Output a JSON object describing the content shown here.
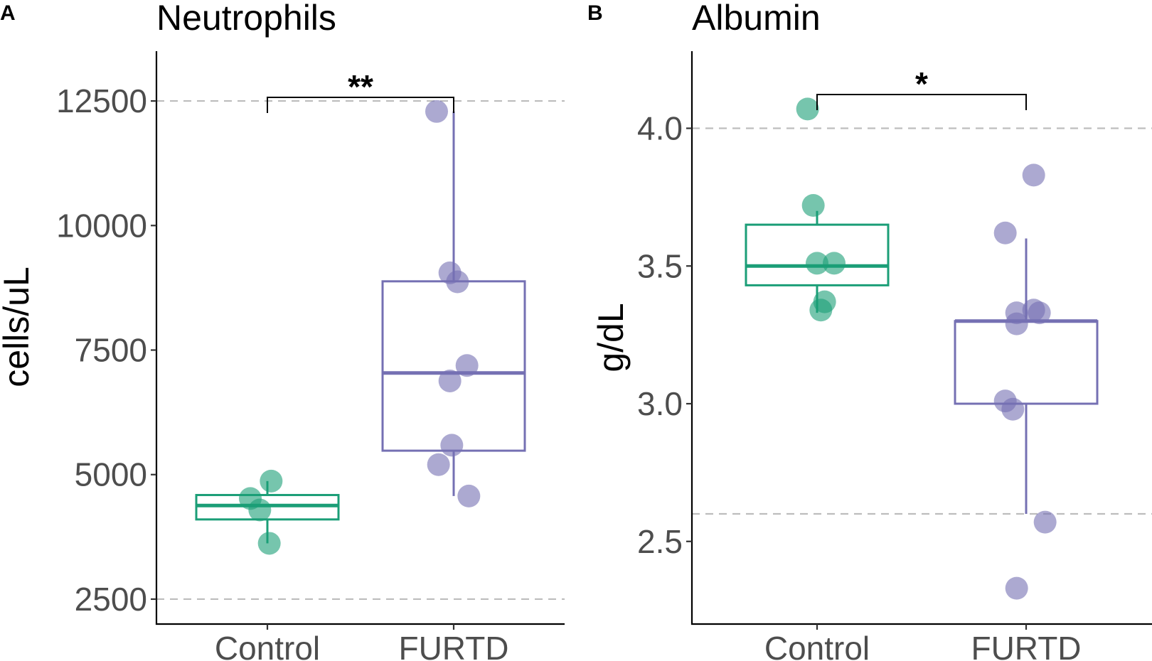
{
  "chart_data": [
    {
      "panel_label": "A",
      "type": "box",
      "title": "Neutrophils",
      "xlabel": "",
      "ylabel": "cells/uL",
      "ylim": [
        2000,
        13500
      ],
      "yticks": [
        2500,
        5000,
        7500,
        10000,
        12500
      ],
      "reference_lines": [
        2500,
        12500
      ],
      "categories": [
        "Control",
        "FURTD"
      ],
      "colors": {
        "Control": "#1b9e77",
        "FURTD": "#7570b3"
      },
      "boxes": [
        {
          "category": "Control",
          "q1": 4100,
          "median": 4380,
          "q3": 4590,
          "whisker_low": 3620,
          "whisker_high": 4870
        },
        {
          "category": "FURTD",
          "q1": 5480,
          "median": 7040,
          "q3": 8880,
          "whisker_low": 4570,
          "whisker_high": 12290
        }
      ],
      "points": [
        {
          "category": "Control",
          "jitter": 0.02,
          "y": 4870
        },
        {
          "category": "Control",
          "jitter": -0.09,
          "y": 4520
        },
        {
          "category": "Control",
          "jitter": -0.04,
          "y": 4290
        },
        {
          "category": "Control",
          "jitter": 0.01,
          "y": 3620
        },
        {
          "category": "FURTD",
          "jitter": -0.09,
          "y": 12290
        },
        {
          "category": "FURTD",
          "jitter": -0.02,
          "y": 9050
        },
        {
          "category": "FURTD",
          "jitter": 0.02,
          "y": 8870
        },
        {
          "category": "FURTD",
          "jitter": 0.07,
          "y": 7190
        },
        {
          "category": "FURTD",
          "jitter": -0.02,
          "y": 6880
        },
        {
          "category": "FURTD",
          "jitter": -0.01,
          "y": 5590
        },
        {
          "category": "FURTD",
          "jitter": -0.08,
          "y": 5200
        },
        {
          "category": "FURTD",
          "jitter": 0.08,
          "y": 4570
        }
      ],
      "significance": {
        "label": "**",
        "from": "Control",
        "to": "FURTD",
        "y": 13000
      }
    },
    {
      "panel_label": "B",
      "type": "box",
      "title": "Albumin",
      "xlabel": "",
      "ylabel": "g/dL",
      "ylim": [
        2.2,
        4.28
      ],
      "yticks": [
        "2.5",
        "3.0",
        "3.5",
        "4.0"
      ],
      "reference_lines": [
        2.6,
        4.0
      ],
      "categories": [
        "Control",
        "FURTD"
      ],
      "colors": {
        "Control": "#1b9e77",
        "FURTD": "#7570b3"
      },
      "boxes": [
        {
          "category": "Control",
          "q1": 3.43,
          "median": 3.5,
          "q3": 3.65,
          "whisker_low": 3.33,
          "whisker_high": 3.7
        },
        {
          "category": "FURTD",
          "q1": 3.0,
          "median": 3.3,
          "q3": 3.3,
          "whisker_low": 2.6,
          "whisker_high": 3.6
        }
      ],
      "points": [
        {
          "category": "Control",
          "jitter": -0.05,
          "y": 4.07
        },
        {
          "category": "Control",
          "jitter": -0.02,
          "y": 3.72
        },
        {
          "category": "Control",
          "jitter": 0.09,
          "y": 3.51
        },
        {
          "category": "Control",
          "jitter": 0.0,
          "y": 3.51
        },
        {
          "category": "Control",
          "jitter": 0.04,
          "y": 3.37
        },
        {
          "category": "Control",
          "jitter": 0.02,
          "y": 3.34
        },
        {
          "category": "FURTD",
          "jitter": 0.04,
          "y": 3.83
        },
        {
          "category": "FURTD",
          "jitter": -0.11,
          "y": 3.62
        },
        {
          "category": "FURTD",
          "jitter": -0.05,
          "y": 3.33
        },
        {
          "category": "FURTD",
          "jitter": 0.04,
          "y": 3.34
        },
        {
          "category": "FURTD",
          "jitter": 0.07,
          "y": 3.33
        },
        {
          "category": "FURTD",
          "jitter": -0.05,
          "y": 3.29
        },
        {
          "category": "FURTD",
          "jitter": -0.11,
          "y": 3.01
        },
        {
          "category": "FURTD",
          "jitter": -0.07,
          "y": 2.98
        },
        {
          "category": "FURTD",
          "jitter": 0.1,
          "y": 2.57
        },
        {
          "category": "FURTD",
          "jitter": -0.05,
          "y": 2.33
        }
      ],
      "significance": {
        "label": "*",
        "from": "Control",
        "to": "FURTD",
        "y": 4.2
      }
    }
  ]
}
